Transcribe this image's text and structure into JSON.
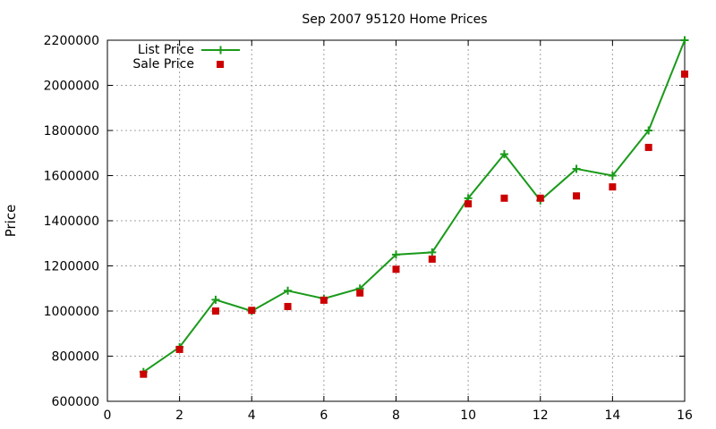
{
  "chart_data": {
    "type": "line",
    "title": "Sep 2007 95120 Home Prices",
    "xlabel": "",
    "ylabel": "Price",
    "xlim": [
      0,
      16
    ],
    "ylim": [
      600000,
      2200000
    ],
    "xticks": [
      0,
      2,
      4,
      6,
      8,
      10,
      12,
      14,
      16
    ],
    "yticks": [
      600000,
      800000,
      1000000,
      1200000,
      1400000,
      1600000,
      1800000,
      2000000,
      2200000
    ],
    "grid": true,
    "legend": "top-left",
    "series": [
      {
        "name": "List Price",
        "style": "line-with-plus-markers",
        "color": "#1a9a1a",
        "x": [
          1,
          2,
          3,
          4,
          5,
          6,
          7,
          8,
          9,
          10,
          11,
          12,
          13,
          14,
          15,
          16
        ],
        "y": [
          730000,
          840000,
          1050000,
          1000000,
          1090000,
          1055000,
          1100000,
          1250000,
          1260000,
          1500000,
          1695000,
          1490000,
          1630000,
          1600000,
          1800000,
          2200000
        ]
      },
      {
        "name": "Sale Price",
        "style": "square-markers",
        "color": "#cc0000",
        "x": [
          1,
          2,
          3,
          4,
          5,
          6,
          7,
          8,
          9,
          10,
          11,
          12,
          13,
          14,
          15,
          16
        ],
        "y": [
          720000,
          830000,
          1000000,
          1003000,
          1020000,
          1048000,
          1080000,
          1185000,
          1230000,
          1475000,
          1500000,
          1500000,
          1510000,
          1550000,
          1725000,
          2050000
        ]
      }
    ]
  }
}
